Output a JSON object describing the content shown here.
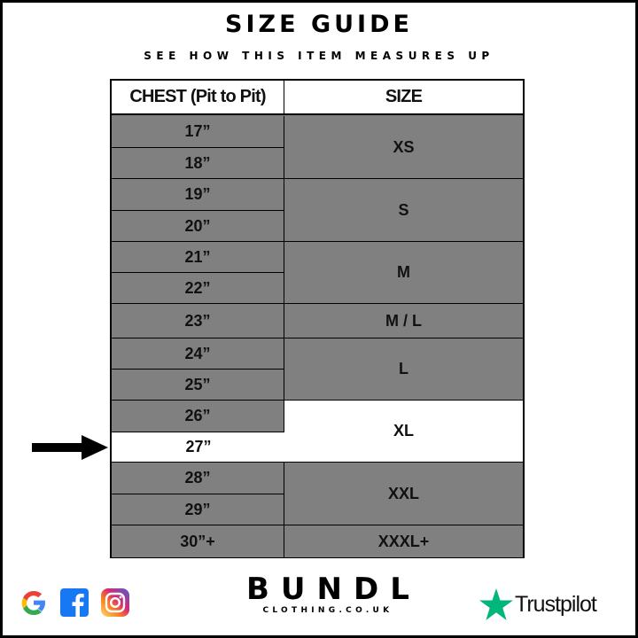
{
  "title": "SIZE GUIDE",
  "subtitle": "SEE HOW THIS ITEM MEASURES UP",
  "table": {
    "headers": [
      "CHEST (Pit to Pit)",
      "SIZE"
    ],
    "chest": [
      "17”",
      "18”",
      "19”",
      "20”",
      "21”",
      "22”",
      "23”",
      "24”",
      "25”",
      "26”",
      "27”",
      "28”",
      "29”",
      "30”+"
    ],
    "sizes": [
      {
        "label": "XS",
        "rows": 2
      },
      {
        "label": "S",
        "rows": 2
      },
      {
        "label": "M",
        "rows": 2
      },
      {
        "label": "M / L",
        "rows": 1
      },
      {
        "label": "L",
        "rows": 2
      },
      {
        "label": "XL",
        "rows": 2,
        "highlighted": true
      },
      {
        "label": "XXL",
        "rows": 2
      },
      {
        "label": "XXXL+",
        "rows": 1
      }
    ],
    "highlighted_chest": "27”",
    "cell_color": "#808080",
    "highlight_color": "#ffffff"
  },
  "pointer": "arrow-right-icon",
  "footer": {
    "social_icons": [
      "google-icon",
      "facebook-icon",
      "instagram-icon"
    ],
    "brand": "BUNDL",
    "brand_sub": "CLOTHING.CO.UK",
    "trustpilot": "Trustpilot",
    "trustpilot_color": "#00b67a"
  }
}
